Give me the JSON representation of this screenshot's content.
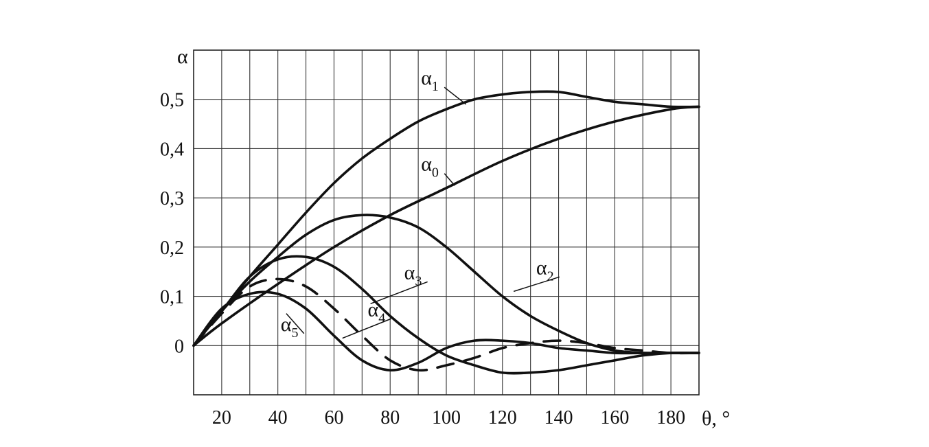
{
  "chart_data": {
    "type": "line",
    "title": "",
    "xlabel": "θ, °",
    "ylabel": "α",
    "xlim": [
      10,
      190
    ],
    "ylim": [
      -0.1,
      0.6
    ],
    "x_ticks": [
      20,
      40,
      60,
      80,
      100,
      120,
      140,
      160,
      180
    ],
    "x_tick_labels": [
      "20",
      "40",
      "60",
      "80",
      "100",
      "120",
      "140",
      "160",
      "180"
    ],
    "y_ticks": [
      0,
      0.1,
      0.2,
      0.3,
      0.4,
      0.5
    ],
    "y_tick_labels": [
      "0",
      "0,1",
      "0,2",
      "0,3",
      "0,4",
      "0,5"
    ],
    "grid": true,
    "series": [
      {
        "name": "α1",
        "base": "α",
        "sub": "1",
        "style": "solid",
        "x": [
          10,
          20,
          30,
          40,
          50,
          60,
          70,
          80,
          90,
          100,
          110,
          120,
          130,
          140,
          150,
          160,
          170,
          180,
          190
        ],
        "y": [
          0,
          0.07,
          0.14,
          0.205,
          0.27,
          0.33,
          0.38,
          0.42,
          0.455,
          0.48,
          0.5,
          0.51,
          0.515,
          0.515,
          0.505,
          0.495,
          0.49,
          0.485,
          0.485
        ]
      },
      {
        "name": "α0",
        "base": "α",
        "sub": "0",
        "style": "solid",
        "x": [
          10,
          20,
          40,
          60,
          80,
          100,
          120,
          140,
          160,
          180,
          190
        ],
        "y": [
          0,
          0.045,
          0.125,
          0.2,
          0.265,
          0.32,
          0.375,
          0.42,
          0.455,
          0.48,
          0.485
        ]
      },
      {
        "name": "α2",
        "base": "α",
        "sub": "2",
        "style": "solid",
        "x": [
          10,
          20,
          30,
          40,
          50,
          60,
          70,
          80,
          90,
          100,
          110,
          120,
          130,
          140,
          150,
          160,
          170,
          180,
          190
        ],
        "y": [
          0,
          0.07,
          0.13,
          0.18,
          0.225,
          0.255,
          0.265,
          0.26,
          0.24,
          0.2,
          0.15,
          0.1,
          0.06,
          0.03,
          0.005,
          -0.01,
          -0.015,
          -0.015,
          -0.015
        ]
      },
      {
        "name": "α3",
        "base": "α",
        "sub": "3",
        "style": "solid",
        "x": [
          10,
          20,
          30,
          40,
          50,
          60,
          70,
          80,
          90,
          100,
          110,
          120,
          130,
          140,
          150,
          160,
          170,
          180,
          190
        ],
        "y": [
          0,
          0.07,
          0.14,
          0.175,
          0.18,
          0.16,
          0.115,
          0.06,
          0.015,
          -0.02,
          -0.04,
          -0.055,
          -0.055,
          -0.05,
          -0.04,
          -0.03,
          -0.02,
          -0.015,
          -0.015
        ]
      },
      {
        "name": "α4",
        "base": "α",
        "sub": "4",
        "style": "dashed",
        "x": [
          10,
          20,
          30,
          40,
          50,
          60,
          70,
          80,
          90,
          100,
          110,
          120,
          130,
          140,
          150,
          160,
          170,
          180,
          190
        ],
        "y": [
          0,
          0.065,
          0.12,
          0.135,
          0.12,
          0.075,
          0.02,
          -0.03,
          -0.05,
          -0.04,
          -0.025,
          -0.005,
          0.005,
          0.01,
          0.005,
          -0.005,
          -0.01,
          -0.015,
          -0.015
        ]
      },
      {
        "name": "α5",
        "base": "α",
        "sub": "5",
        "style": "solid",
        "x": [
          10,
          20,
          30,
          40,
          50,
          60,
          70,
          80,
          90,
          100,
          110,
          120,
          130,
          140,
          150,
          160,
          170,
          180,
          190
        ],
        "y": [
          0,
          0.075,
          0.105,
          0.105,
          0.075,
          0.02,
          -0.03,
          -0.05,
          -0.035,
          -0.005,
          0.01,
          0.01,
          0.005,
          -0.005,
          -0.01,
          -0.015,
          -0.015,
          -0.015,
          -0.015
        ]
      }
    ],
    "annotations": [
      {
        "series": "α1",
        "label_at": [
          91,
          0.53
        ],
        "points_to": [
          107,
          0.49
        ]
      },
      {
        "series": "α0",
        "label_at": [
          91,
          0.355
        ],
        "points_to": [
          103,
          0.325
        ]
      },
      {
        "series": "α2",
        "label_at": [
          132,
          0.145
        ],
        "points_to": [
          124,
          0.11
        ]
      },
      {
        "series": "α3",
        "label_at": [
          85,
          0.135
        ],
        "points_to": [
          73,
          0.085
        ]
      },
      {
        "series": "α4",
        "label_at": [
          72,
          0.06
        ],
        "points_to": [
          63,
          0.015
        ]
      },
      {
        "series": "α5",
        "label_at": [
          41,
          0.03
        ],
        "points_to": [
          43,
          0.065
        ]
      }
    ]
  }
}
